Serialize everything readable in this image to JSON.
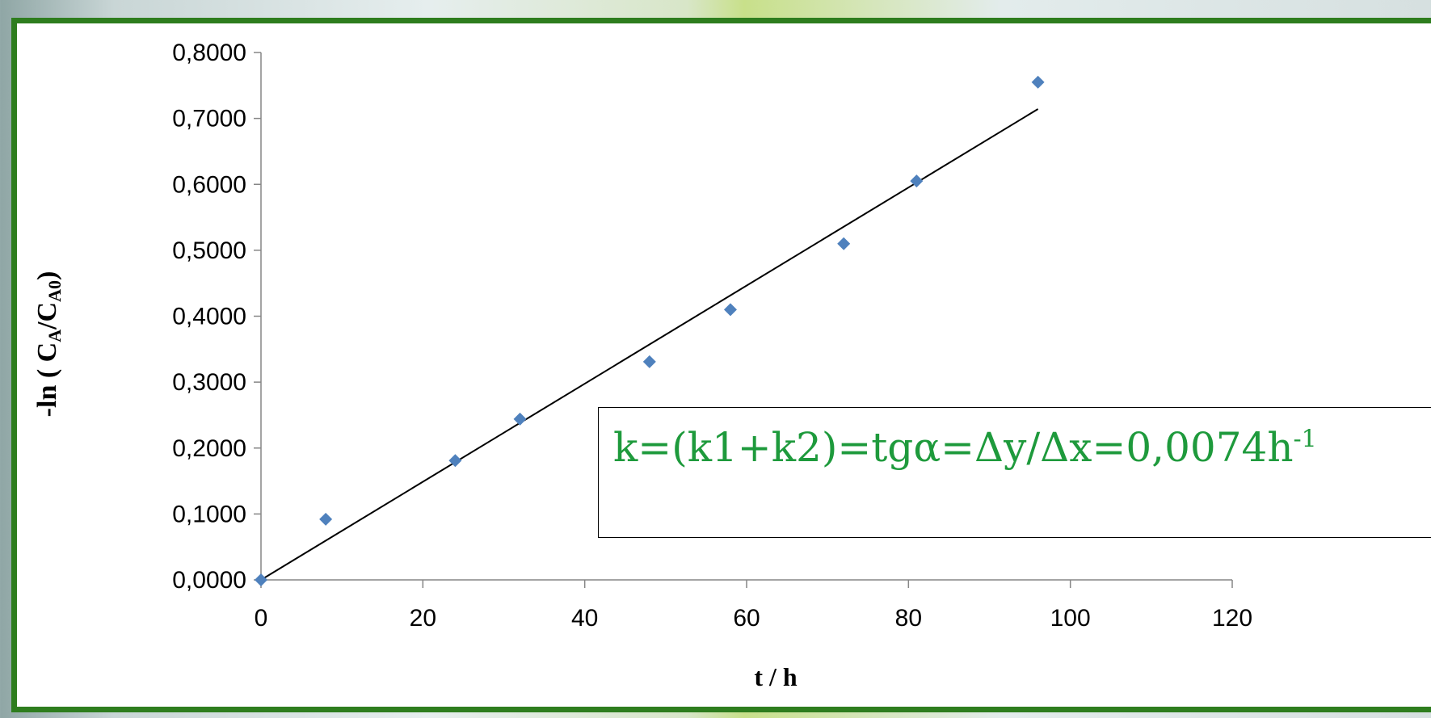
{
  "chart_data": {
    "type": "scatter",
    "xlabel": "t / h",
    "ylabel": {
      "prefix": "-ln ( C",
      "sub1": "A",
      "mid": "/C",
      "sub2": "A0",
      "suffix": ")"
    },
    "xlim": [
      0,
      120
    ],
    "ylim": [
      0,
      0.8
    ],
    "x_ticks": [
      "0",
      "20",
      "40",
      "60",
      "80",
      "100",
      "120"
    ],
    "y_ticks": [
      "0,0000",
      "0,1000",
      "0,2000",
      "0,3000",
      "0,4000",
      "0,5000",
      "0,6000",
      "0,7000",
      "0,8000"
    ],
    "points": [
      {
        "x": 0,
        "y": 0.0
      },
      {
        "x": 8,
        "y": 0.092
      },
      {
        "x": 24,
        "y": 0.181
      },
      {
        "x": 32,
        "y": 0.244
      },
      {
        "x": 48,
        "y": 0.331
      },
      {
        "x": 58,
        "y": 0.41
      },
      {
        "x": 72,
        "y": 0.51
      },
      {
        "x": 81,
        "y": 0.605
      },
      {
        "x": 96,
        "y": 0.755
      }
    ],
    "trendline": {
      "slope": 0.00744,
      "intercept": 0,
      "x_range": [
        0,
        96
      ]
    },
    "marker_color": "#4f81bd",
    "line_color": "#000000",
    "grid": false,
    "annotation": {
      "text": "k=(k1+k2)=tgα=Δy/Δx=0,0074h",
      "superscript": "-1",
      "color": "#1e9a3c"
    }
  }
}
